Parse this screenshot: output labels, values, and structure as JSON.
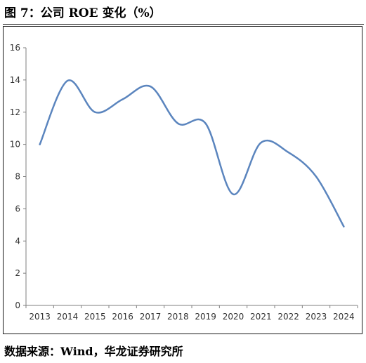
{
  "figure": {
    "title": "图 7：公司 ROE 变化（%）",
    "source": "数据来源：Wind，华龙证券研究所"
  },
  "chart_data": {
    "type": "line",
    "title": "",
    "xlabel": "",
    "ylabel": "",
    "categories": [
      "2013",
      "2014",
      "2015",
      "2016",
      "2017",
      "2018",
      "2019",
      "2020",
      "2021",
      "2022",
      "2023",
      "2024"
    ],
    "series": [
      {
        "values": [
          10.0,
          13.95,
          12.0,
          12.8,
          13.6,
          11.3,
          11.3,
          6.9,
          10.1,
          9.5,
          8.0,
          4.9
        ]
      }
    ],
    "ylim": [
      0,
      16
    ],
    "yticks": [
      0,
      2,
      4,
      6,
      8,
      10,
      12,
      14,
      16
    ],
    "grid": false,
    "legend": "none",
    "colors": {
      "line": "#5b85be",
      "axis": "#7f7f7f",
      "text": "#333333"
    }
  }
}
